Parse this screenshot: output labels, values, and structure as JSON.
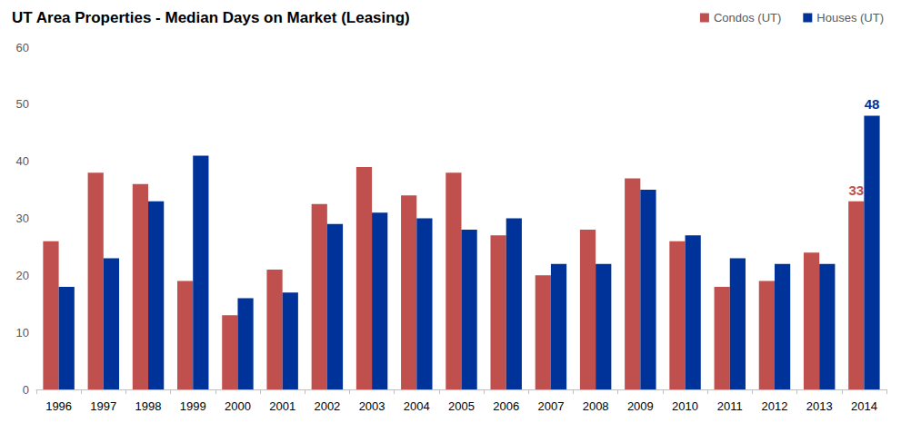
{
  "chart_data": {
    "type": "bar",
    "title": "UT Area Properties - Median Days on Market (Leasing)",
    "categories": [
      "1996",
      "1997",
      "1998",
      "1999",
      "2000",
      "2001",
      "2002",
      "2003",
      "2004",
      "2005",
      "2006",
      "2007",
      "2008",
      "2009",
      "2010",
      "2011",
      "2012",
      "2013",
      "2014"
    ],
    "series": [
      {
        "name": "Condos (UT)",
        "color": "#c0504d",
        "values": [
          26,
          38,
          36,
          19,
          13,
          21,
          32.5,
          39,
          34,
          38,
          27,
          20,
          28,
          37,
          26,
          18,
          19,
          24,
          33
        ],
        "value_labels": [
          null,
          null,
          null,
          null,
          null,
          null,
          null,
          null,
          null,
          null,
          null,
          null,
          null,
          null,
          null,
          null,
          null,
          null,
          "33"
        ]
      },
      {
        "name": "Houses (UT)",
        "color": "#003399",
        "values": [
          18,
          23,
          33,
          41,
          16,
          17,
          29,
          31,
          30,
          28,
          30,
          22,
          22,
          35,
          27,
          23,
          22,
          22,
          48
        ],
        "value_labels": [
          null,
          null,
          null,
          null,
          null,
          null,
          null,
          null,
          null,
          null,
          null,
          null,
          null,
          null,
          null,
          null,
          null,
          null,
          "48"
        ]
      }
    ],
    "ylim": [
      0,
      60
    ],
    "yticks": [
      0,
      10,
      20,
      30,
      40,
      50,
      60
    ],
    "grid": false,
    "legend": "top-right"
  }
}
